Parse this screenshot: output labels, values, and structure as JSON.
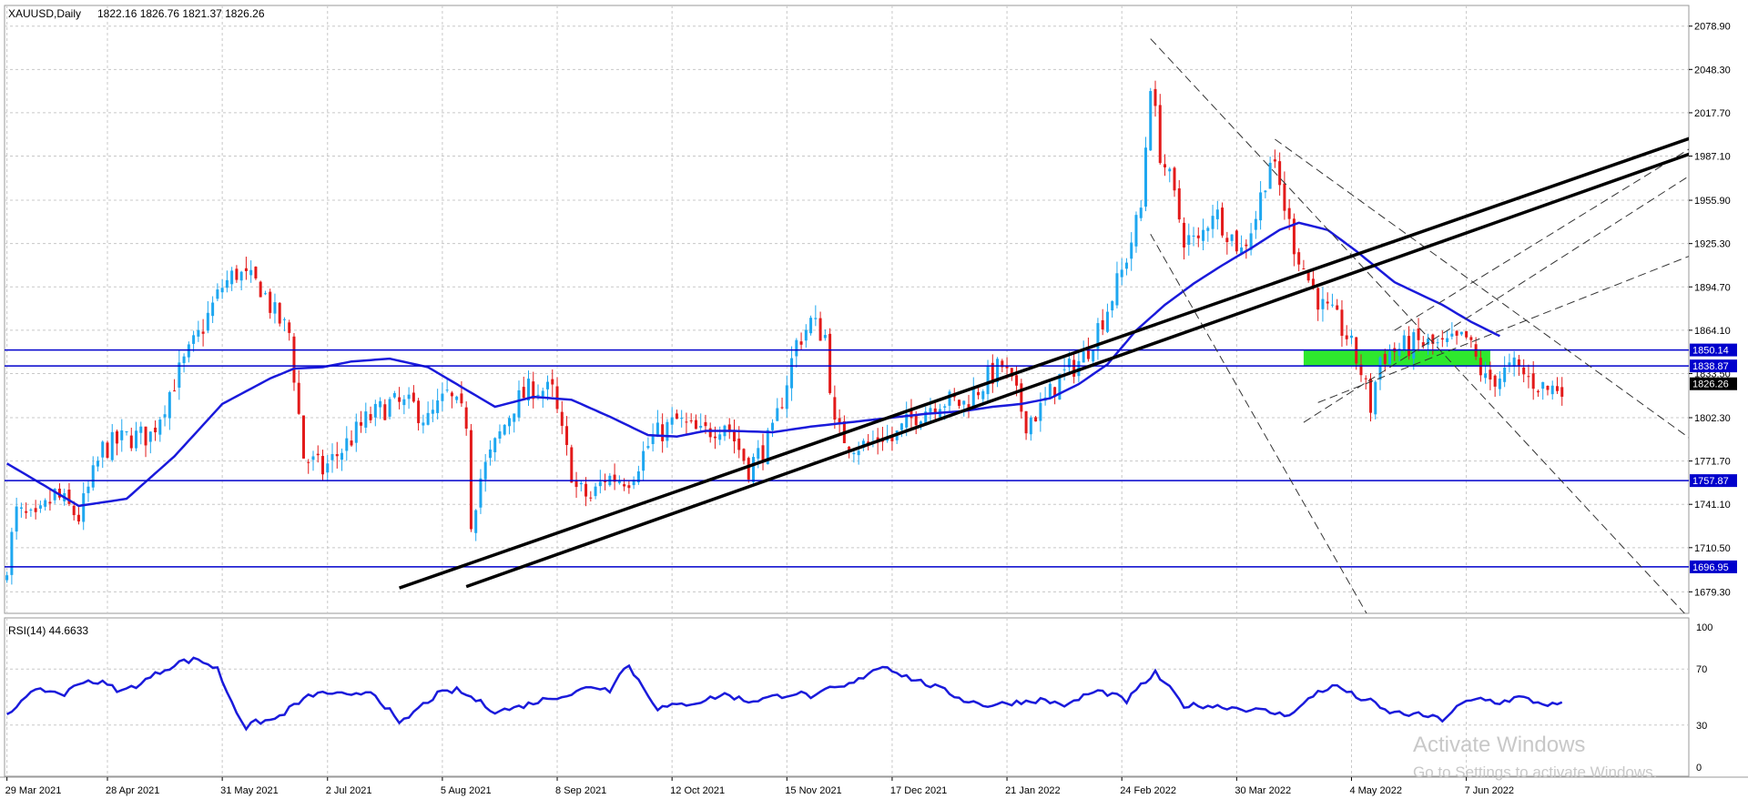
{
  "chart_data": {
    "type": "candlestick",
    "symbol": "XAUUSD,Daily",
    "ohlc_header": "1822.16 1826.76 1821.37 1826.26",
    "current_price": 1826.26,
    "price_axis": {
      "ylim": [
        1664.1,
        2093.5
      ],
      "ticks": [
        2078.9,
        2048.3,
        2017.7,
        1987.1,
        1955.9,
        1925.3,
        1894.7,
        1864.1,
        1833.5,
        1802.3,
        1771.7,
        1741.1,
        1710.5,
        1679.3
      ],
      "tick_labels": [
        "2078.90",
        "2048.30",
        "2017.70",
        "1987.10",
        "1955.90",
        "1925.30",
        "1894.70",
        "1864.10",
        "1833.50",
        "1802.30",
        "1771.70",
        "1741.10",
        "1710.50",
        "1679.30"
      ]
    },
    "x_axis_labels": [
      "29 Mar 2021",
      "28 Apr 2021",
      "31 May 2021",
      "2 Jul 2021",
      "5 Aug 2021",
      "8 Sep 2021",
      "12 Oct 2021",
      "15 Nov 2021",
      "17 Dec 2021",
      "21 Jan 2022",
      "24 Feb 2022",
      "30 Mar 2022",
      "4 May 2022",
      "7 Jun 2022"
    ],
    "x_axis_label_index": [
      0,
      21,
      45,
      67,
      91,
      115,
      139,
      163,
      185,
      209,
      233,
      257,
      281,
      305
    ],
    "bar_count": 352,
    "close_anchors": [
      [
        0,
        1700
      ],
      [
        2,
        1735
      ],
      [
        6,
        1728
      ],
      [
        10,
        1748
      ],
      [
        15,
        1732
      ],
      [
        20,
        1780
      ],
      [
        25,
        1788
      ],
      [
        30,
        1790
      ],
      [
        35,
        1828
      ],
      [
        40,
        1860
      ],
      [
        45,
        1895
      ],
      [
        48,
        1905
      ],
      [
        50,
        1900
      ],
      [
        53,
        1895
      ],
      [
        56,
        1875
      ],
      [
        59,
        1862
      ],
      [
        62,
        1775
      ],
      [
        66,
        1765
      ],
      [
        70,
        1780
      ],
      [
        75,
        1800
      ],
      [
        80,
        1812
      ],
      [
        85,
        1810
      ],
      [
        88,
        1800
      ],
      [
        92,
        1818
      ],
      [
        96,
        1800
      ],
      [
        97,
        1730
      ],
      [
        99,
        1760
      ],
      [
        103,
        1790
      ],
      [
        106,
        1812
      ],
      [
        110,
        1824
      ],
      [
        114,
        1820
      ],
      [
        116,
        1790
      ],
      [
        119,
        1752
      ],
      [
        122,
        1745
      ],
      [
        125,
        1760
      ],
      [
        130,
        1760
      ],
      [
        135,
        1788
      ],
      [
        140,
        1800
      ],
      [
        145,
        1790
      ],
      [
        150,
        1800
      ],
      [
        155,
        1767
      ],
      [
        160,
        1790
      ],
      [
        165,
        1855
      ],
      [
        168,
        1870
      ],
      [
        171,
        1860
      ],
      [
        173,
        1795
      ],
      [
        176,
        1785
      ],
      [
        180,
        1782
      ],
      [
        183,
        1790
      ],
      [
        185,
        1786
      ],
      [
        190,
        1805
      ],
      [
        195,
        1815
      ],
      [
        200,
        1812
      ],
      [
        205,
        1830
      ],
      [
        208,
        1839
      ],
      [
        210,
        1825
      ],
      [
        213,
        1800
      ],
      [
        216,
        1808
      ],
      [
        220,
        1830
      ],
      [
        225,
        1845
      ],
      [
        230,
        1880
      ],
      [
        233,
        1905
      ],
      [
        237,
        1950
      ],
      [
        239,
        2040
      ],
      [
        241,
        1990
      ],
      [
        243,
        1970
      ],
      [
        246,
        1930
      ],
      [
        249,
        1925
      ],
      [
        252,
        1950
      ],
      [
        255,
        1935
      ],
      [
        258,
        1920
      ],
      [
        261,
        1945
      ],
      [
        264,
        1985
      ],
      [
        266,
        1965
      ],
      [
        269,
        1925
      ],
      [
        272,
        1900
      ],
      [
        275,
        1880
      ],
      [
        278,
        1870
      ],
      [
        280,
        1860
      ],
      [
        283,
        1835
      ],
      [
        285,
        1810
      ],
      [
        287,
        1845
      ],
      [
        290,
        1850
      ],
      [
        295,
        1855
      ],
      [
        300,
        1852
      ],
      [
        305,
        1858
      ],
      [
        309,
        1828
      ],
      [
        312,
        1832
      ],
      [
        315,
        1838
      ],
      [
        318,
        1830
      ],
      [
        322,
        1822
      ],
      [
        325,
        1826
      ]
    ],
    "moving_average": [
      [
        0,
        1770
      ],
      [
        15,
        1740
      ],
      [
        25,
        1745
      ],
      [
        35,
        1775
      ],
      [
        45,
        1812
      ],
      [
        55,
        1830
      ],
      [
        60,
        1837
      ],
      [
        66,
        1838
      ],
      [
        72,
        1842
      ],
      [
        80,
        1844
      ],
      [
        88,
        1838
      ],
      [
        96,
        1822
      ],
      [
        102,
        1810
      ],
      [
        110,
        1817
      ],
      [
        118,
        1815
      ],
      [
        126,
        1803
      ],
      [
        134,
        1790
      ],
      [
        140,
        1789
      ],
      [
        146,
        1793
      ],
      [
        152,
        1793
      ],
      [
        160,
        1792
      ],
      [
        168,
        1796
      ],
      [
        176,
        1799
      ],
      [
        184,
        1802
      ],
      [
        192,
        1805
      ],
      [
        200,
        1807
      ],
      [
        206,
        1810
      ],
      [
        212,
        1812
      ],
      [
        218,
        1816
      ],
      [
        224,
        1826
      ],
      [
        230,
        1840
      ],
      [
        236,
        1864
      ],
      [
        242,
        1882
      ],
      [
        248,
        1897
      ],
      [
        254,
        1910
      ],
      [
        260,
        1922
      ],
      [
        266,
        1935
      ],
      [
        270,
        1940
      ],
      [
        276,
        1935
      ],
      [
        282,
        1920
      ],
      [
        290,
        1898
      ],
      [
        300,
        1882
      ],
      [
        306,
        1870
      ],
      [
        312,
        1860
      ]
    ],
    "horizontal_levels": [
      {
        "value": 1850.14,
        "label": "1850.14"
      },
      {
        "value": 1838.87,
        "label": "1838.87"
      },
      {
        "value": 1757.87,
        "label": "1757.87"
      },
      {
        "value": 1696.95,
        "label": "1696.95"
      }
    ],
    "trendlines_bold": [
      {
        "from": [
          82,
          1682
        ],
        "to": [
          352,
          2000
        ]
      },
      {
        "from": [
          96,
          1683
        ],
        "to": [
          352,
          1989
        ]
      }
    ],
    "trendlines_dashed": [
      {
        "from": [
          239,
          2070
        ],
        "to": [
          352,
          1659
        ]
      },
      {
        "from": [
          239,
          1932
        ],
        "to": [
          285,
          1659
        ]
      },
      {
        "from": [
          265,
          1999
        ],
        "to": [
          352,
          1787
        ]
      },
      {
        "from": [
          271,
          1799
        ],
        "to": [
          352,
          1974
        ]
      },
      {
        "from": [
          274,
          1813
        ],
        "to": [
          352,
          1917
        ]
      },
      {
        "from": [
          290,
          1864
        ],
        "to": [
          352,
          1993
        ]
      }
    ],
    "zone": {
      "from_index": 271,
      "to_index": 310,
      "low": 1838.87,
      "high": 1850.14,
      "color": "#2ee82e"
    },
    "rsi": {
      "label": "RSI(14) 44.6633",
      "period": 14,
      "last": 44.6633,
      "ylim": [
        0,
        100
      ],
      "ticks": [
        100,
        70,
        30,
        0
      ],
      "tick_labels": [
        "100",
        "70",
        "30",
        "0"
      ],
      "anchors": [
        [
          0,
          36
        ],
        [
          4,
          52
        ],
        [
          8,
          55
        ],
        [
          12,
          52
        ],
        [
          16,
          62
        ],
        [
          20,
          60
        ],
        [
          24,
          54
        ],
        [
          28,
          60
        ],
        [
          32,
          68
        ],
        [
          36,
          75
        ],
        [
          40,
          77
        ],
        [
          44,
          70
        ],
        [
          46,
          54
        ],
        [
          48,
          40
        ],
        [
          50,
          28
        ],
        [
          52,
          32
        ],
        [
          56,
          34
        ],
        [
          60,
          44
        ],
        [
          64,
          52
        ],
        [
          68,
          53
        ],
        [
          72,
          50
        ],
        [
          76,
          55
        ],
        [
          80,
          40
        ],
        [
          82,
          30
        ],
        [
          86,
          42
        ],
        [
          90,
          52
        ],
        [
          94,
          55
        ],
        [
          98,
          48
        ],
        [
          102,
          40
        ],
        [
          106,
          42
        ],
        [
          110,
          46
        ],
        [
          114,
          50
        ],
        [
          118,
          52
        ],
        [
          122,
          58
        ],
        [
          126,
          55
        ],
        [
          128,
          68
        ],
        [
          130,
          72
        ],
        [
          133,
          57
        ],
        [
          136,
          42
        ],
        [
          140,
          44
        ],
        [
          145,
          47
        ],
        [
          150,
          52
        ],
        [
          155,
          47
        ],
        [
          160,
          50
        ],
        [
          165,
          53
        ],
        [
          169,
          50
        ],
        [
          172,
          56
        ],
        [
          175,
          57
        ],
        [
          178,
          62
        ],
        [
          181,
          70
        ],
        [
          184,
          72
        ],
        [
          187,
          66
        ],
        [
          190,
          62
        ],
        [
          195,
          56
        ],
        [
          200,
          48
        ],
        [
          205,
          44
        ],
        [
          210,
          46
        ],
        [
          213,
          47
        ],
        [
          216,
          48
        ],
        [
          219,
          46
        ],
        [
          222,
          44
        ],
        [
          225,
          51
        ],
        [
          228,
          54
        ],
        [
          231,
          52
        ],
        [
          234,
          47
        ],
        [
          237,
          58
        ],
        [
          240,
          67
        ],
        [
          243,
          56
        ],
        [
          246,
          44
        ],
        [
          250,
          44
        ],
        [
          255,
          43
        ],
        [
          260,
          41
        ],
        [
          263,
          40
        ],
        [
          267,
          37
        ],
        [
          270,
          42
        ],
        [
          274,
          54
        ],
        [
          278,
          58
        ],
        [
          282,
          50
        ],
        [
          285,
          47
        ],
        [
          288,
          40
        ],
        [
          292,
          38
        ],
        [
          296,
          37
        ],
        [
          300,
          34
        ],
        [
          304,
          45
        ],
        [
          308,
          49
        ],
        [
          312,
          46
        ],
        [
          316,
          50
        ],
        [
          320,
          46
        ],
        [
          324,
          44
        ],
        [
          325,
          44.66
        ]
      ]
    },
    "colors": {
      "bull": "#1ea7f0",
      "bear": "#e31a1a",
      "ma": "#1a1adb",
      "level": "#0000cc",
      "rsi": "#1a1adb",
      "trend": "#000000",
      "grid": "#c8c8c8"
    }
  },
  "watermark": {
    "line1": "Activate Windows",
    "line2": "Go to Settings to activate Windows."
  }
}
